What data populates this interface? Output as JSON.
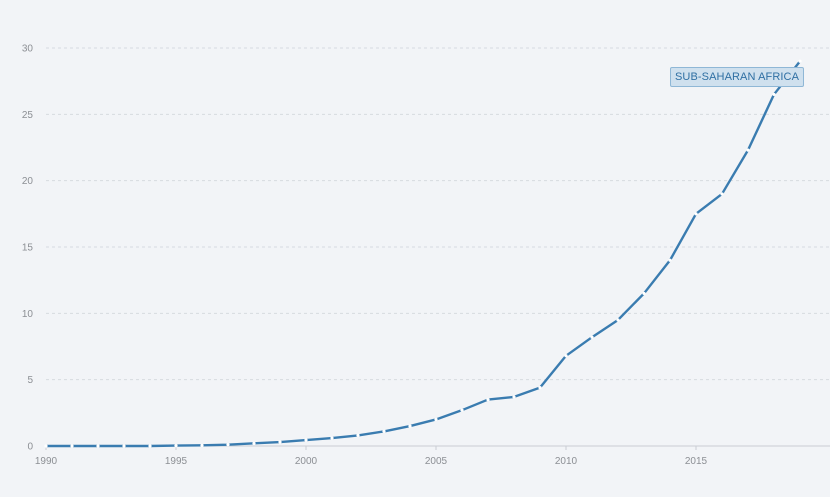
{
  "chart_data": {
    "type": "line",
    "title": "",
    "xlabel": "",
    "ylabel": "",
    "xlim": [
      1990,
      2019
    ],
    "ylim": [
      0,
      30
    ],
    "yticks": [
      0,
      5,
      10,
      15,
      20,
      25,
      30
    ],
    "xticks": [
      1990,
      1995,
      2000,
      2005,
      2010,
      2015
    ],
    "grid": true,
    "legend": "none",
    "series": [
      {
        "name": "SUB-SAHARAN AFRICA",
        "color": "#3a7cb0",
        "x": [
          1990,
          1991,
          1992,
          1993,
          1994,
          1995,
          1996,
          1997,
          1998,
          1999,
          2000,
          2001,
          2002,
          2003,
          2004,
          2005,
          2006,
          2007,
          2008,
          2009,
          2010,
          2011,
          2012,
          2013,
          2014,
          2015,
          2016,
          2017,
          2018,
          2019
        ],
        "values": [
          0,
          0,
          0,
          0,
          0,
          0.03,
          0.05,
          0.1,
          0.2,
          0.3,
          0.45,
          0.6,
          0.8,
          1.1,
          1.5,
          2.0,
          2.7,
          3.5,
          3.7,
          4.4,
          6.8,
          8.2,
          9.5,
          11.5,
          14.0,
          17.5,
          19.0,
          22.3,
          26.5,
          29.0
        ]
      }
    ]
  }
}
